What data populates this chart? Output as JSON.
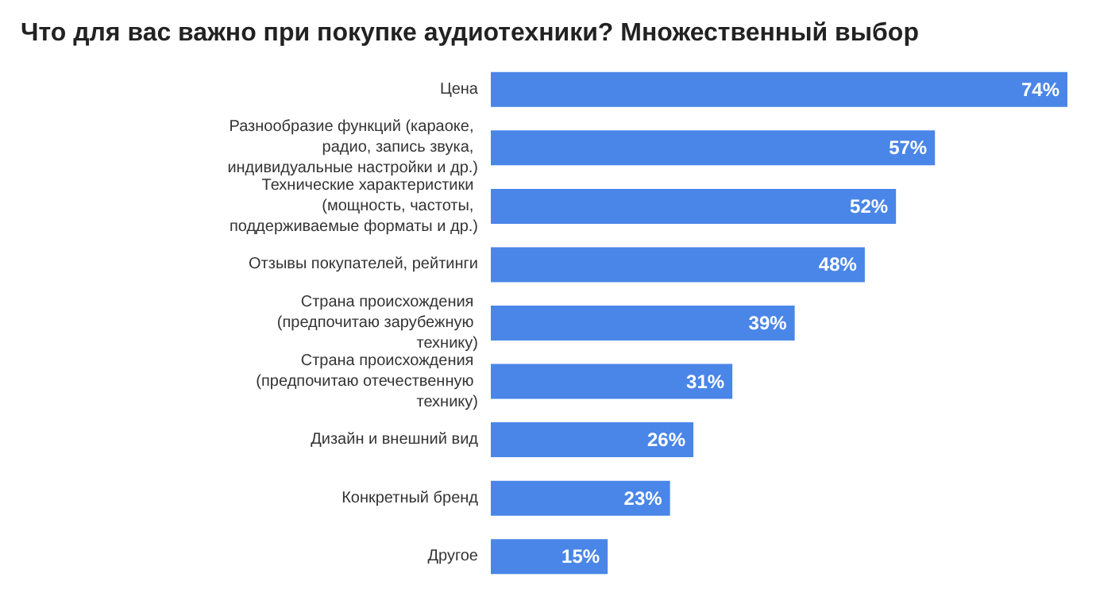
{
  "chart_data": {
    "type": "bar",
    "orientation": "horizontal",
    "title": "Что для вас важно при покупке аудиотехники? Множественный выбор",
    "categories": [
      "Цена",
      "Разнообразие функций (караоке, радио, запись звука, индивидуальные настройки и др.)",
      "Технические характеристики (мощность, частоты, поддерживаемые форматы и др.)",
      "Отзывы покупателей, рейтинги",
      "Страна происхождения (предпочитаю зарубежную технику)",
      "Страна происхождения (предпочитаю отечественную технику)",
      "Дизайн и внешний вид",
      "Конкретный бренд",
      "Другое"
    ],
    "values": [
      74,
      57,
      52,
      48,
      39,
      31,
      26,
      23,
      15
    ],
    "value_labels": [
      "74%",
      "57%",
      "52%",
      "48%",
      "39%",
      "31%",
      "26%",
      "23%",
      "15%"
    ],
    "color": "#4a86e8"
  }
}
